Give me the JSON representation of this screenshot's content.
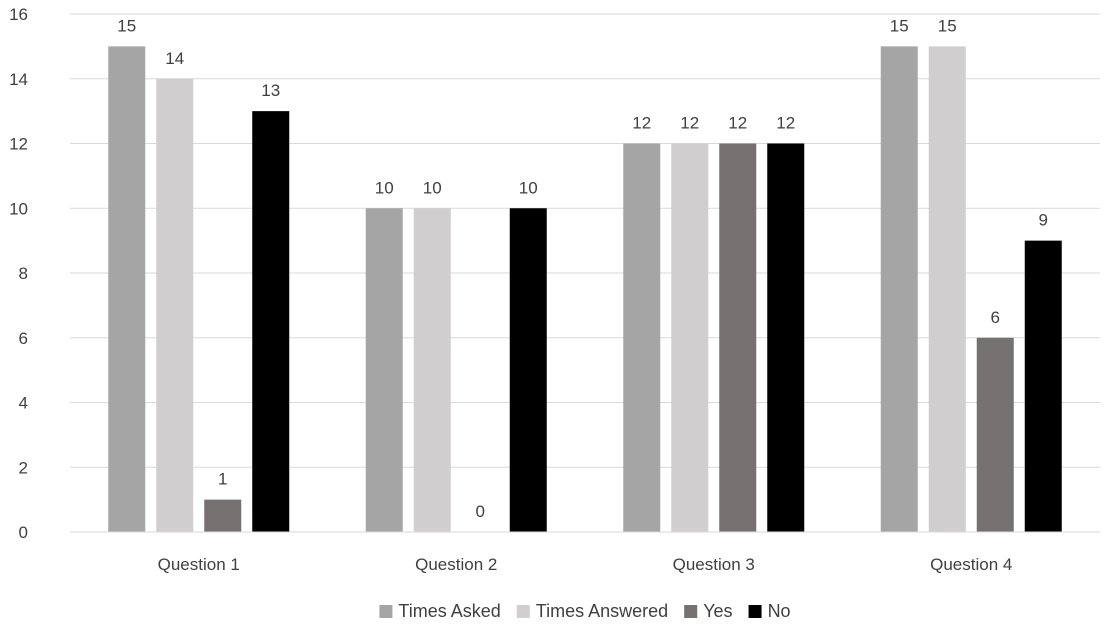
{
  "chart_data": {
    "type": "bar",
    "categories": [
      "Question 1",
      "Question 2",
      "Question 3",
      "Question 4"
    ],
    "series": [
      {
        "name": "Times Asked",
        "color": "#a5a5a5",
        "values": [
          15,
          10,
          12,
          15
        ]
      },
      {
        "name": "Times Answered",
        "color": "#d0cece",
        "values": [
          14,
          10,
          12,
          15
        ]
      },
      {
        "name": "Yes",
        "color": "#767171",
        "values": [
          1,
          0,
          12,
          6
        ]
      },
      {
        "name": "No",
        "color": "#000000",
        "values": [
          13,
          10,
          12,
          9
        ]
      }
    ],
    "ylim": [
      0,
      16
    ],
    "yticks": [
      0,
      2,
      4,
      6,
      8,
      10,
      12,
      14,
      16
    ],
    "grid": true,
    "data_labels": true,
    "legend_position": "bottom"
  }
}
